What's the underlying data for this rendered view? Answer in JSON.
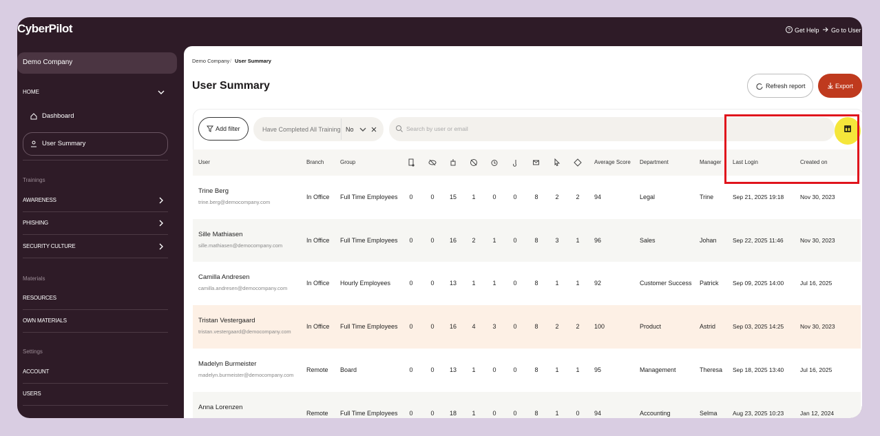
{
  "header": {
    "logo": "CyberPilot",
    "help": "Get Help",
    "go_to_user": "Go to User"
  },
  "sidebar": {
    "company": "Demo Company",
    "home": {
      "label": "HOME",
      "items": [
        "Dashboard",
        "User Summary"
      ]
    },
    "groups": [
      {
        "label": "Trainings",
        "items": [
          "AWARENESS",
          "PHISHING",
          "SECURITY CULTURE"
        ]
      },
      {
        "label": "Materials",
        "items": [
          "RESOURCES",
          "OWN MATERIALS"
        ]
      },
      {
        "label": "Settings",
        "items": [
          "ACCOUNT",
          "USERS"
        ]
      }
    ]
  },
  "main": {
    "breadcrumb": [
      "Demo Company",
      "User Summary"
    ],
    "title": "User Summary",
    "buttons": {
      "refresh": "Refresh report",
      "export": "Export"
    },
    "filters": {
      "add": "Add filter",
      "filter_label": "Have Completed All Training",
      "filter_value": "No",
      "search_placeholder": "Search by user or email"
    }
  },
  "table": {
    "columns": [
      "User",
      "Branch",
      "Group",
      "Average Score",
      "Department",
      "Manager",
      "Last Login",
      "Created on"
    ],
    "rows": [
      {
        "name": "Trine Berg",
        "email": "trine.berg@democompany.com",
        "branch": "In Office",
        "group": "Full Time Employees",
        "counts": [
          0,
          0,
          15,
          1,
          0,
          0,
          8,
          2,
          2
        ],
        "average_score": 94,
        "department": "Legal",
        "manager": "Trine",
        "last_login": "Sep 21, 2025 19:18",
        "created_on": "Nov 30, 2023"
      },
      {
        "name": "Sille Mathiasen",
        "email": "sille.mathiasen@democompany.com",
        "branch": "In Office",
        "group": "Full Time Employees",
        "counts": [
          0,
          0,
          16,
          2,
          1,
          0,
          8,
          3,
          1
        ],
        "average_score": 96,
        "department": "Sales",
        "manager": "Johan",
        "last_login": "Sep 22, 2025 11:46",
        "created_on": "Nov 30, 2023"
      },
      {
        "name": "Camilla Andresen",
        "email": "camilla.andresen@democompany.com",
        "branch": "In Office",
        "group": "Hourly Employees",
        "counts": [
          0,
          0,
          13,
          1,
          1,
          0,
          8,
          1,
          1
        ],
        "average_score": 92,
        "department": "Customer Success",
        "manager": "Patrick",
        "last_login": "Sep 09, 2025 14:00",
        "created_on": "Jul 16, 2025"
      },
      {
        "name": "Tristan Vestergaard",
        "email": "tristan.vestergaard@democompany.com",
        "branch": "In Office",
        "group": "Full Time Employees",
        "counts": [
          0,
          0,
          16,
          4,
          3,
          0,
          8,
          2,
          2
        ],
        "average_score": 100,
        "department": "Product",
        "manager": "Astrid",
        "last_login": "Sep 03, 2025 14:25",
        "created_on": "Nov 30, 2023"
      },
      {
        "name": "Madelyn Burmeister",
        "email": "madelyn.burmeister@democompany.com",
        "branch": "Remote",
        "group": "Board",
        "counts": [
          0,
          0,
          13,
          1,
          0,
          0,
          8,
          1,
          1
        ],
        "average_score": 95,
        "department": "Management",
        "manager": "Theresa",
        "last_login": "Sep 18, 2025 13:40",
        "created_on": "Jul 16, 2025"
      },
      {
        "name": "Anna Lorenzen",
        "branch": "Remote",
        "group": "Full Time Employees",
        "counts": [
          0,
          0,
          18,
          1,
          0,
          0,
          8,
          1,
          0
        ],
        "average_score": 94,
        "department": "Accounting",
        "manager": "Selma",
        "last_login": "Aug 23, 2025 10:23",
        "created_on": "Jan 12, 2024"
      }
    ]
  }
}
